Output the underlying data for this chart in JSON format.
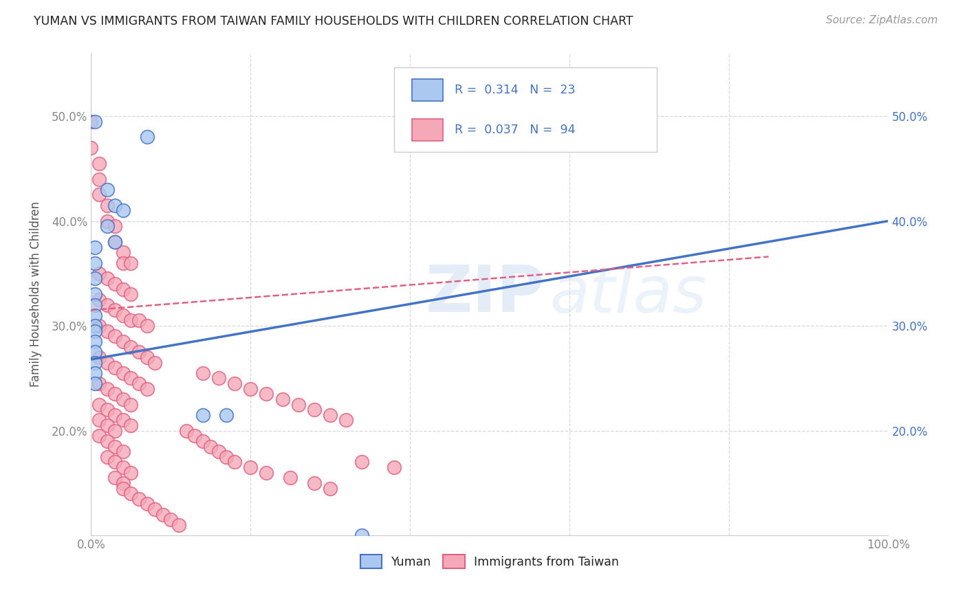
{
  "title": "YUMAN VS IMMIGRANTS FROM TAIWAN FAMILY HOUSEHOLDS WITH CHILDREN CORRELATION CHART",
  "source": "Source: ZipAtlas.com",
  "ylabel_label": "Family Households with Children",
  "xlim": [
    0.0,
    1.0
  ],
  "ylim": [
    0.1,
    0.56
  ],
  "legend_yuman": "Yuman",
  "legend_taiwan": "Immigrants from Taiwan",
  "R_yuman": "0.314",
  "N_yuman": "23",
  "R_taiwan": "0.037",
  "N_taiwan": "94",
  "color_yuman": "#aac8f0",
  "color_taiwan": "#f4a8b8",
  "line_color_yuman": "#4472c4",
  "line_color_taiwan": "#e06080",
  "grid_color": "#d8d8d8",
  "background_color": "#ffffff",
  "title_color": "#222222",
  "source_color": "#999999",
  "axis_label_color": "#555555",
  "left_tick_color": "#888888",
  "right_tick_color": "#4472c4",
  "legend_text_color": "#4472c4",
  "yuman_points": [
    [
      0.005,
      0.495
    ],
    [
      0.07,
      0.48
    ],
    [
      0.02,
      0.43
    ],
    [
      0.03,
      0.415
    ],
    [
      0.04,
      0.41
    ],
    [
      0.02,
      0.395
    ],
    [
      0.03,
      0.38
    ],
    [
      0.005,
      0.375
    ],
    [
      0.005,
      0.36
    ],
    [
      0.005,
      0.345
    ],
    [
      0.005,
      0.33
    ],
    [
      0.005,
      0.32
    ],
    [
      0.005,
      0.31
    ],
    [
      0.005,
      0.3
    ],
    [
      0.005,
      0.295
    ],
    [
      0.005,
      0.285
    ],
    [
      0.005,
      0.275
    ],
    [
      0.005,
      0.265
    ],
    [
      0.005,
      0.255
    ],
    [
      0.005,
      0.245
    ],
    [
      0.14,
      0.215
    ],
    [
      0.17,
      0.215
    ],
    [
      0.34,
      0.1
    ]
  ],
  "taiwan_points": [
    [
      0.0,
      0.495
    ],
    [
      0.0,
      0.47
    ],
    [
      0.01,
      0.455
    ],
    [
      0.01,
      0.44
    ],
    [
      0.01,
      0.425
    ],
    [
      0.02,
      0.415
    ],
    [
      0.02,
      0.4
    ],
    [
      0.03,
      0.395
    ],
    [
      0.03,
      0.38
    ],
    [
      0.04,
      0.37
    ],
    [
      0.04,
      0.36
    ],
    [
      0.05,
      0.36
    ],
    [
      0.01,
      0.35
    ],
    [
      0.02,
      0.345
    ],
    [
      0.03,
      0.34
    ],
    [
      0.04,
      0.335
    ],
    [
      0.05,
      0.33
    ],
    [
      0.01,
      0.325
    ],
    [
      0.02,
      0.32
    ],
    [
      0.03,
      0.315
    ],
    [
      0.04,
      0.31
    ],
    [
      0.05,
      0.305
    ],
    [
      0.06,
      0.305
    ],
    [
      0.07,
      0.3
    ],
    [
      0.01,
      0.3
    ],
    [
      0.02,
      0.295
    ],
    [
      0.03,
      0.29
    ],
    [
      0.04,
      0.285
    ],
    [
      0.05,
      0.28
    ],
    [
      0.06,
      0.275
    ],
    [
      0.07,
      0.27
    ],
    [
      0.08,
      0.265
    ],
    [
      0.01,
      0.27
    ],
    [
      0.02,
      0.265
    ],
    [
      0.03,
      0.26
    ],
    [
      0.04,
      0.255
    ],
    [
      0.05,
      0.25
    ],
    [
      0.06,
      0.245
    ],
    [
      0.07,
      0.24
    ],
    [
      0.01,
      0.245
    ],
    [
      0.02,
      0.24
    ],
    [
      0.03,
      0.235
    ],
    [
      0.04,
      0.23
    ],
    [
      0.05,
      0.225
    ],
    [
      0.01,
      0.225
    ],
    [
      0.02,
      0.22
    ],
    [
      0.03,
      0.215
    ],
    [
      0.04,
      0.21
    ],
    [
      0.05,
      0.205
    ],
    [
      0.01,
      0.21
    ],
    [
      0.02,
      0.205
    ],
    [
      0.03,
      0.2
    ],
    [
      0.01,
      0.195
    ],
    [
      0.02,
      0.19
    ],
    [
      0.03,
      0.185
    ],
    [
      0.04,
      0.18
    ],
    [
      0.02,
      0.175
    ],
    [
      0.03,
      0.17
    ],
    [
      0.04,
      0.165
    ],
    [
      0.05,
      0.16
    ],
    [
      0.03,
      0.155
    ],
    [
      0.04,
      0.15
    ],
    [
      0.04,
      0.145
    ],
    [
      0.05,
      0.14
    ],
    [
      0.06,
      0.135
    ],
    [
      0.07,
      0.13
    ],
    [
      0.08,
      0.125
    ],
    [
      0.09,
      0.12
    ],
    [
      0.1,
      0.115
    ],
    [
      0.11,
      0.11
    ],
    [
      0.12,
      0.2
    ],
    [
      0.13,
      0.195
    ],
    [
      0.14,
      0.19
    ],
    [
      0.15,
      0.185
    ],
    [
      0.16,
      0.18
    ],
    [
      0.17,
      0.175
    ],
    [
      0.18,
      0.17
    ],
    [
      0.2,
      0.165
    ],
    [
      0.22,
      0.16
    ],
    [
      0.25,
      0.155
    ],
    [
      0.28,
      0.15
    ],
    [
      0.3,
      0.145
    ],
    [
      0.34,
      0.17
    ],
    [
      0.38,
      0.165
    ],
    [
      0.14,
      0.255
    ],
    [
      0.16,
      0.25
    ],
    [
      0.18,
      0.245
    ],
    [
      0.2,
      0.24
    ],
    [
      0.22,
      0.235
    ],
    [
      0.24,
      0.23
    ],
    [
      0.26,
      0.225
    ],
    [
      0.28,
      0.22
    ],
    [
      0.3,
      0.215
    ],
    [
      0.32,
      0.21
    ]
  ],
  "yuman_line_x": [
    0.0,
    1.0
  ],
  "yuman_line_y": [
    0.268,
    0.4
  ],
  "taiwan_line_x": [
    0.0,
    1.0
  ],
  "taiwan_line_y": [
    0.315,
    0.375
  ],
  "taiwan_line_end_x": 0.85
}
